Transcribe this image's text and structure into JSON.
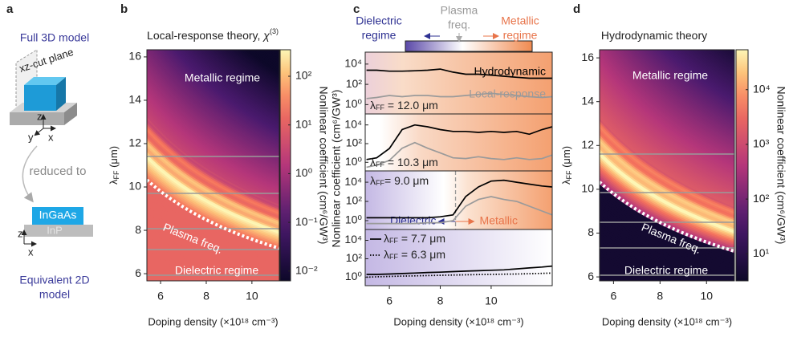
{
  "schematic": {
    "label": "a",
    "top_title": "Full 3D model",
    "cut_plane": "xz-cut plane",
    "axes_3d": [
      "z",
      "y",
      "x"
    ],
    "reduced": "reduced to",
    "layer_top": "InGaAs",
    "layer_bottom": "InP",
    "axes_2d": [
      "z",
      "x"
    ],
    "bottom_title": [
      "Equivalent 2D",
      "model"
    ]
  },
  "chart_data": [
    {
      "type": "heatmap",
      "label": "b",
      "title": "Local-response theory, ",
      "title_symbol": "χ",
      "title_sup": "(3)",
      "xlabel": "Doping density (×10¹⁸ cm⁻³)",
      "ylabel": {
        "symbol": "λ",
        "sub": "FF",
        "text": " (μm)"
      },
      "xlim": [
        5.4,
        11.2
      ],
      "xticks": [
        6,
        8,
        10
      ],
      "ylim": [
        5.67,
        16.33
      ],
      "yticks": [
        6,
        8,
        10,
        12,
        14,
        16
      ],
      "colorbar": {
        "label": "Nonlinear coefficient (cm⁶/GW³)",
        "log": true,
        "clim": [
          0.0063,
          350
        ],
        "cticks": [
          {
            "value": 0.01,
            "label": "10⁻²"
          },
          {
            "value": 0.1,
            "label": "10⁻¹"
          },
          {
            "value": 1,
            "label": "10⁰"
          },
          {
            "value": 10,
            "label": "10¹"
          },
          {
            "value": 100,
            "label": "10²"
          }
        ]
      },
      "annotations": [
        "Metallic regime",
        "Plasma freq.",
        "Dielectric regime"
      ]
    },
    {
      "type": "line",
      "label": "c",
      "log_y": true,
      "xlabel": "Doping density (×10¹⁸ cm⁻³)",
      "ylabel": "Nonlinear coefficient (cm⁶/GW³)",
      "xlim": [
        5.05,
        12.4
      ],
      "xticks": [
        6,
        8,
        10
      ],
      "ylim": [
        0.12,
        150000
      ],
      "yticks": [
        {
          "value": 1,
          "label": "10⁰"
        },
        {
          "value": 100,
          "label": "10²"
        },
        {
          "value": 10000,
          "label": "10⁴"
        }
      ],
      "regime_bar": {
        "left": [
          "Dielectric",
          "regime"
        ],
        "middle": [
          "Plasma",
          "freq."
        ],
        "right": [
          "Metallic",
          "regime"
        ]
      },
      "x": [
        5.1,
        5.5,
        6,
        6.5,
        7,
        7.5,
        8,
        8.5,
        9,
        9.5,
        10,
        10.5,
        11,
        11.5,
        12,
        12.4
      ],
      "panels": [
        {
          "tag": {
            "symbol": "λ",
            "sub": "FF",
            "text": " = 12.0 μm"
          },
          "series": [
            {
              "name": "Hydrodynamic",
              "color": "#000000",
              "values": [
                2500,
                2500,
                2000,
                2000,
                2200,
                2500,
                3200,
                1600,
                1000,
                1000,
                800,
                630,
                500,
                400,
                400,
                400
              ]
            },
            {
              "name": "Local-response",
              "color": "#9a9a9a",
              "values": [
                4,
                5,
                8,
                6,
                8,
                8,
                6,
                6,
                8,
                10,
                13,
                10,
                8,
                6,
                5,
                6
              ]
            }
          ]
        },
        {
          "tag": {
            "symbol": "λ",
            "sub": "FF",
            "text": " = 10.3 μm"
          },
          "series": [
            {
              "color": "#000000",
              "values": [
                2,
                3,
                30,
                3200,
                10000,
                6300,
                3200,
                2000,
                2000,
                1600,
                2000,
                1600,
                2000,
                1000,
                3200,
                6300
              ]
            },
            {
              "color": "#9a9a9a",
              "values": [
                0.3,
                0.5,
                1.6,
                32,
                130,
                32,
                10,
                3,
                2.5,
                4,
                2.5,
                2,
                3,
                2,
                2.5,
                6
              ]
            }
          ]
        },
        {
          "tag": {
            "symbol": "λ",
            "sub": "FF",
            "text": "= 9.0 μm"
          },
          "plasma_x": 8.6,
          "annotations": [
            "Dielectric",
            "Metallic"
          ],
          "series": [
            {
              "color": "#000000",
              "values": [
                2,
                2,
                2,
                2,
                2,
                2,
                2.5,
                4,
                320,
                3200,
                13000,
                16000,
                10000,
                6300,
                4000,
                3200
              ]
            },
            {
              "color": "#9a9a9a",
              "values": [
                0.5,
                0.5,
                0.5,
                0.5,
                0.5,
                0.6,
                0.6,
                1,
                32,
                160,
                320,
                160,
                100,
                32,
                10,
                4
              ]
            }
          ]
        },
        {
          "series": [
            {
              "label": {
                "symbol": "λ",
                "sub": "FF",
                "text": " = 7.7 μm"
              },
              "color": "#000000",
              "dash": "solid",
              "values": [
                2,
                2,
                2.2,
                2.5,
                2.8,
                3.2,
                3.5,
                4,
                4.5,
                5,
                5.6,
                6.3,
                8,
                10,
                12.6,
                16
              ]
            },
            {
              "label": {
                "symbol": "λ",
                "sub": "FF",
                "text": " = 6.3 μm"
              },
              "color": "#000000",
              "dash": "dotted",
              "values": [
                1,
                1.1,
                1.2,
                1.3,
                1.4,
                1.5,
                1.6,
                1.7,
                1.8,
                1.9,
                2,
                2.1,
                2.2,
                2.4,
                2.6,
                2.8
              ]
            }
          ]
        }
      ]
    },
    {
      "type": "heatmap",
      "label": "d",
      "title": "Hydrodynamic theory",
      "xlabel": "Doping density (×10¹⁸ cm⁻³)",
      "ylabel": {
        "symbol": "λ",
        "sub": "FF",
        "text": " (μm)"
      },
      "xlim": [
        5.4,
        11.2
      ],
      "xticks": [
        6,
        8,
        10
      ],
      "ylim": [
        5.82,
        16.37
      ],
      "yticks": [
        6,
        8,
        10,
        12,
        14,
        16
      ],
      "colorbar": {
        "label": "Nonlinear coefficient (cm⁶/GW³)",
        "log": true,
        "clim": [
          3.2,
          53700
        ],
        "cticks": [
          {
            "value": 10,
            "label": "10¹"
          },
          {
            "value": 100,
            "label": "10²"
          },
          {
            "value": 1000,
            "label": "10³"
          },
          {
            "value": 10000,
            "label": "10⁴"
          }
        ]
      },
      "annotations": [
        "Metallic regime",
        "Plasma freq.",
        "Dielectric regime"
      ]
    }
  ]
}
